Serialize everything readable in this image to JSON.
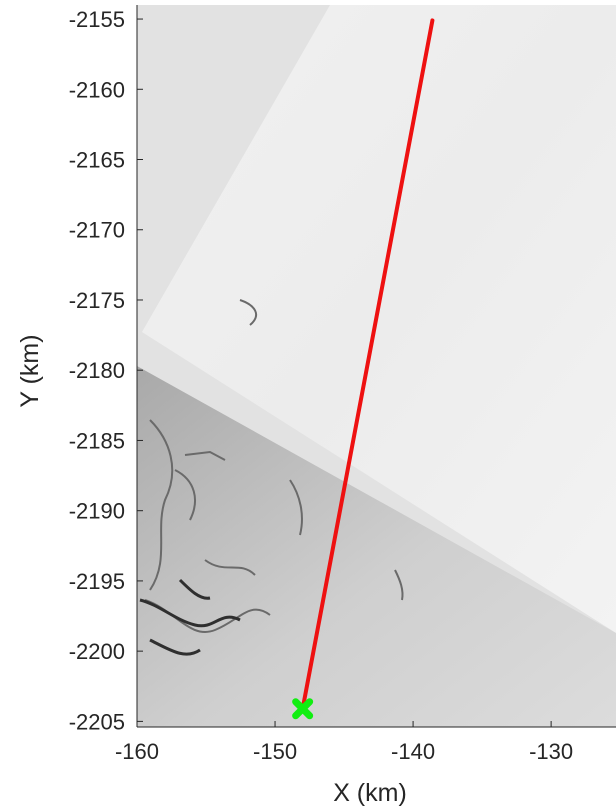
{
  "chart_data": {
    "type": "line",
    "title": "",
    "xlabel": "X (km)",
    "ylabel": "Y (km)",
    "xlim": [
      -160,
      -125.3
    ],
    "ylim": [
      -2205.4,
      -2154
    ],
    "xticks": [
      -160,
      -150,
      -140,
      -130
    ],
    "yticks": [
      -2205,
      -2200,
      -2195,
      -2190,
      -2185,
      -2180,
      -2175,
      -2170,
      -2165,
      -2160,
      -2155
    ],
    "xtick_labels": [
      "-160",
      "-150",
      "-140",
      "-130"
    ],
    "ytick_labels": [
      "-2205",
      "-2200",
      "-2195",
      "-2190",
      "-2185",
      "-2180",
      "-2175",
      "-2170",
      "-2165",
      "-2160",
      "-2155"
    ],
    "grid": false,
    "background": "grayscale satellite ice imagery",
    "series": [
      {
        "type": "line",
        "color": "#ee1111",
        "x": [
          -148.0,
          -138.6
        ],
        "y": [
          -2204.1,
          -2155.1
        ]
      },
      {
        "type": "scatter",
        "marker": "x",
        "color": "#11ee11",
        "x": [
          -148.0
        ],
        "y": [
          -2204.1
        ]
      }
    ]
  }
}
